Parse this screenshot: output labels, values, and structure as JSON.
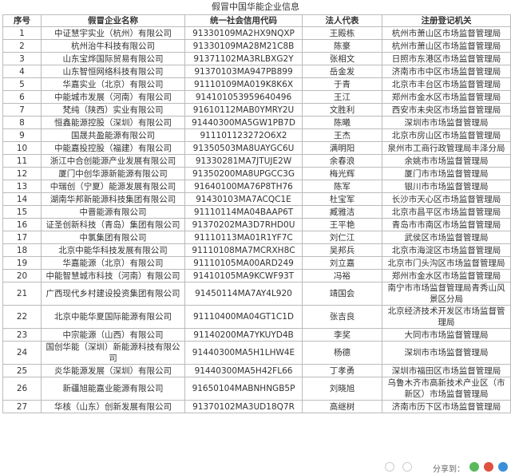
{
  "title": "假冒中国华能企业信息",
  "table": {
    "headers": [
      "序号",
      "假冒企业名称",
      "统一社会信用代码",
      "法人代表",
      "注册登记机关"
    ],
    "rows": [
      [
        "1",
        "中证慧宇实业（杭州）有限公司",
        "91330109MA2HX9NQXP",
        "王殿栋",
        "杭州市萧山区市场监督管理局"
      ],
      [
        "2",
        "杭州治牛科技有限公司",
        "91330109MA28M21C8B",
        "陈豪",
        "杭州市萧山区市场监督管理局"
      ],
      [
        "3",
        "山东宝烨国际贸易有限公司",
        "91371102MA3RLBXG2Y",
        "张相文",
        "日照市东港区市场监督管理局"
      ],
      [
        "4",
        "山东智恒网络科技有限公司",
        "91370103MA947PB899",
        "岳金发",
        "济南市市中区市场监督管理局"
      ],
      [
        "5",
        "华嘉实业（北京）有限公司",
        "91110109MA019K8K6X",
        "于青",
        "北京市丰台区市场监督管理局"
      ],
      [
        "6",
        "中能城市发展（河南）有限公司",
        "914101053959640496",
        "王江",
        "郑州市金水区市场监督管理局"
      ],
      [
        "7",
        "梵纯（陕西）实业有限公司",
        "91610112MAB0YMRY2U",
        "文胜利",
        "西安市未央区市场监督管理局"
      ],
      [
        "8",
        "恒鑫能源控股（深圳）有限公司",
        "91440300MA5GW1PB7D",
        "陈曦",
        "深圳市市场监督管理局"
      ],
      [
        "9",
        "国晟共盈能源有限公司",
        "911101123272O6X2",
        "王杰",
        "北京市房山区市场监督管理局"
      ],
      [
        "10",
        "中能嘉投控股（福建）有限公司",
        "91350503MA8UAYGC6U",
        "满明阳",
        "泉州市工商行政管理局丰泽分局"
      ],
      [
        "11",
        "浙江中合创能源产业发展有限公司",
        "91330281MA7JTUJE2W",
        "余春浪",
        "余姚市市场监督管理局"
      ],
      [
        "12",
        "厦门中创华源新能源有限公司",
        "91350200MA8UPGCC3G",
        "梅光辉",
        "厦门市市场监督管理局"
      ],
      [
        "13",
        "中瑞创（宁夏）能源发展有限公司",
        "91640100MA76P8TH76",
        "陈军",
        "银川市市场监督管理局"
      ],
      [
        "14",
        "湖南华邦新能源科技集团有限公司",
        "91430103MA7ACQC1E",
        "杜宝军",
        "长沙市天心区市场监督管理局"
      ],
      [
        "15",
        "中晋能源有限公司",
        "91110114MA04BAAP6T",
        "臧雅洁",
        "北京市昌平区市场监督管理局"
      ],
      [
        "16",
        "证圣创新科技（青岛）集团有限公司",
        "91370202MA3D7RHD0U",
        "王平艳",
        "青岛市市南区市场监督管理局"
      ],
      [
        "17",
        "中氯集团有限公司",
        "91110113MA01R1YF7C",
        "刘仁江",
        "武侯区市场监督管理局"
      ],
      [
        "18",
        "北京中能华科技发展有限公司",
        "91110108MA7MCRXH8C",
        "吴邦兵",
        "北京市海淀区市场监督管理局"
      ],
      [
        "19",
        "华嘉能源（北京）有限公司",
        "91110105MA00ARD249",
        "刘立嘉",
        "北京市门头沟区市场监督管理局"
      ],
      [
        "20",
        "中能智慧城市科技（河南）有限公司",
        "91410105MA9KCWF93T",
        "冯裕",
        "郑州市金水区市场监督管理局"
      ],
      [
        "21",
        "广西现代乡村建设投资集团有限公司",
        "91450114MA7AY4L920",
        "靖国会",
        "南宁市市场监督管理局青秀山风景区分局"
      ],
      [
        "22",
        "北京中能华夏国际能源有限公司",
        "91110400MA04GT1C1D",
        "张吉良",
        "北京经济技术开发区市场监督管理局"
      ],
      [
        "23",
        "中宗能源（山西）有限公司",
        "91140200MA7YKUYD4B",
        "李奖",
        "大同市市场监督管理局"
      ],
      [
        "24",
        "国创华能（深圳）新能源科技有限公司",
        "91440300MA5H1LHW4E",
        "杨德",
        "深圳市市场监督管理局"
      ],
      [
        "25",
        "炎华能源发展（深圳）有限公司",
        "91440300MA5H42FL66",
        "丁孝勇",
        "深圳市福田区市场监督管理局"
      ],
      [
        "26",
        "新疆旭能嘉业能源有限公司",
        "91650104MABNHNGB5P",
        "刘晓旭",
        "乌鲁木齐市高新技术产业区（市新区）市场监督管理局"
      ],
      [
        "27",
        "华核（山东）创新发展有限公司",
        "91370102MA3UD18Q7R",
        "高继树",
        "济南市历下区市场监督管理局"
      ]
    ]
  },
  "footer": {
    "share": "分享到："
  }
}
